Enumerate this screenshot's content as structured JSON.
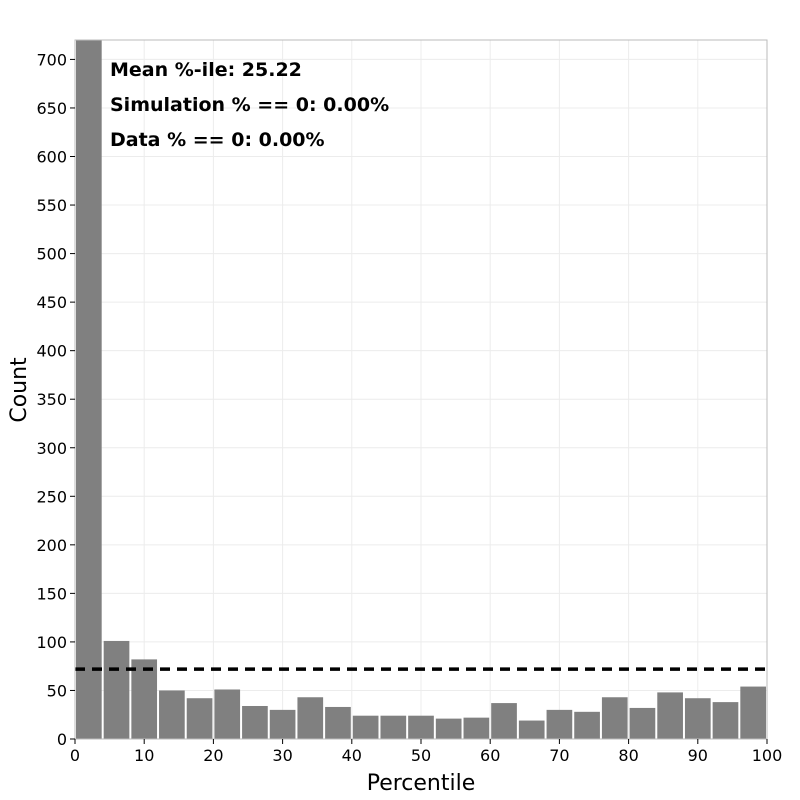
{
  "chart_data": {
    "type": "bar",
    "xlabel": "Percentile",
    "ylabel": "Count",
    "xlim": [
      0,
      100
    ],
    "ylim": [
      0,
      720
    ],
    "x_ticks": [
      0,
      10,
      20,
      30,
      40,
      50,
      60,
      70,
      80,
      90,
      100
    ],
    "y_ticks": [
      0,
      50,
      100,
      150,
      200,
      250,
      300,
      350,
      400,
      450,
      500,
      550,
      600,
      650,
      700
    ],
    "bin_width": 4,
    "bin_starts": [
      0,
      4,
      8,
      12,
      16,
      20,
      24,
      28,
      32,
      36,
      40,
      44,
      48,
      52,
      56,
      60,
      64,
      68,
      72,
      76,
      80,
      84,
      88,
      92,
      96
    ],
    "values": [
      720,
      101,
      82,
      50,
      42,
      51,
      34,
      30,
      43,
      33,
      24,
      24,
      24,
      21,
      22,
      37,
      19,
      30,
      28,
      43,
      32,
      48,
      42,
      38,
      54
    ],
    "reference_line": {
      "y": 72,
      "style": "dashed"
    },
    "grid": true,
    "bar_color": "#808080",
    "annotations": [
      "Mean %-ile: 25.22",
      "Simulation % == 0: 0.00%",
      "Data % == 0: 0.00%"
    ]
  }
}
